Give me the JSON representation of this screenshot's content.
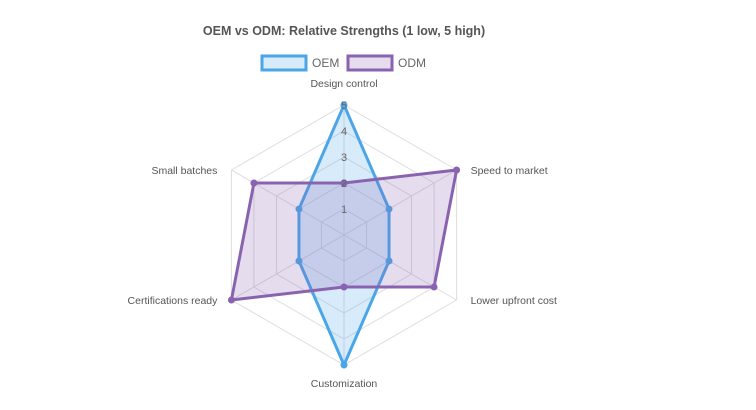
{
  "chart_data": {
    "type": "radar",
    "title": "OEM vs ODM: Relative Strengths (1 low, 5 high)",
    "axes": [
      "Design control",
      "Speed to market",
      "Lower upfront cost",
      "Customization",
      "Certifications ready",
      "Small batches"
    ],
    "r_range": [
      0,
      5
    ],
    "ticks": [
      "1",
      "2",
      "3",
      "4",
      "5"
    ],
    "legend_position": "top",
    "grid": true,
    "series": [
      {
        "name": "OEM",
        "values": [
          5,
          2,
          2,
          5,
          2,
          2
        ],
        "color": "#4ba6e8",
        "fill": "rgba(75,166,232,0.22)"
      },
      {
        "name": "ODM",
        "values": [
          2,
          5,
          4,
          2,
          5,
          4
        ],
        "color": "#8a63b0",
        "fill": "rgba(138,99,176,0.22)"
      }
    ]
  }
}
